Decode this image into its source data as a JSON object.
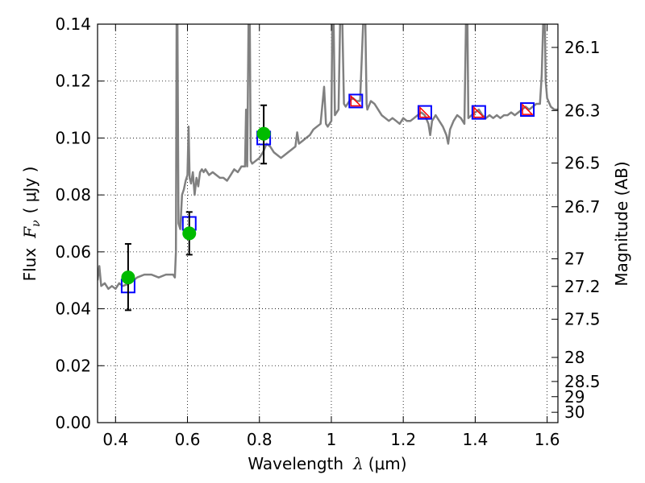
{
  "chart_data": {
    "type": "line",
    "title": "",
    "xlabel_text": "Wavelength",
    "xlabel_symbol": "λ",
    "xlabel_unit": "(μm)",
    "ylabel_text": "Flux",
    "ylabel_symbol": "F",
    "ylabel_subscript": "ν",
    "ylabel_unit": "( μJy )",
    "ylabel_right": "Magnitude (AB)",
    "xlim": [
      0.35,
      1.63
    ],
    "ylim": [
      0.0,
      0.14
    ],
    "grid": true,
    "x_ticks": [
      {
        "value": 0.4,
        "label": "0.4"
      },
      {
        "value": 0.6,
        "label": "0.6"
      },
      {
        "value": 0.8,
        "label": "0.8"
      },
      {
        "value": 1.0,
        "label": "1"
      },
      {
        "value": 1.2,
        "label": "1.2"
      },
      {
        "value": 1.4,
        "label": "1.4"
      },
      {
        "value": 1.6,
        "label": "1.6"
      }
    ],
    "y_ticks": [
      {
        "value": 0.0,
        "label": "0.00"
      },
      {
        "value": 0.02,
        "label": "0.02"
      },
      {
        "value": 0.04,
        "label": "0.04"
      },
      {
        "value": 0.06,
        "label": "0.06"
      },
      {
        "value": 0.08,
        "label": "0.08"
      },
      {
        "value": 0.1,
        "label": "0.10"
      },
      {
        "value": 0.12,
        "label": "0.12"
      },
      {
        "value": 0.14,
        "label": "0.14"
      }
    ],
    "mag_ticks": [
      {
        "value": 26.1,
        "label": "26.1"
      },
      {
        "value": 26.3,
        "label": "26.3"
      },
      {
        "value": 26.5,
        "label": "26.5"
      },
      {
        "value": 26.7,
        "label": "26.7"
      },
      {
        "value": 27.0,
        "label": "27"
      },
      {
        "value": 27.2,
        "label": "27.2"
      },
      {
        "value": 27.5,
        "label": "27.5"
      },
      {
        "value": 28.0,
        "label": "28"
      },
      {
        "value": 28.5,
        "label": "28.5"
      },
      {
        "value": 29.0,
        "label": "29"
      },
      {
        "value": 30.0,
        "label": "30"
      }
    ],
    "spectrum": [
      [
        0.35,
        0.05
      ],
      [
        0.355,
        0.055
      ],
      [
        0.36,
        0.048
      ],
      [
        0.37,
        0.049
      ],
      [
        0.38,
        0.047
      ],
      [
        0.39,
        0.048
      ],
      [
        0.4,
        0.047
      ],
      [
        0.41,
        0.049
      ],
      [
        0.42,
        0.048
      ],
      [
        0.44,
        0.049
      ],
      [
        0.46,
        0.051
      ],
      [
        0.48,
        0.052
      ],
      [
        0.5,
        0.052
      ],
      [
        0.52,
        0.051
      ],
      [
        0.54,
        0.052
      ],
      [
        0.56,
        0.052
      ],
      [
        0.565,
        0.051
      ],
      [
        0.568,
        0.06
      ],
      [
        0.57,
        0.145
      ],
      [
        0.572,
        0.145
      ],
      [
        0.575,
        0.07
      ],
      [
        0.58,
        0.068
      ],
      [
        0.585,
        0.08
      ],
      [
        0.59,
        0.082
      ],
      [
        0.595,
        0.085
      ],
      [
        0.6,
        0.087
      ],
      [
        0.603,
        0.104
      ],
      [
        0.606,
        0.086
      ],
      [
        0.61,
        0.084
      ],
      [
        0.615,
        0.088
      ],
      [
        0.62,
        0.08
      ],
      [
        0.625,
        0.086
      ],
      [
        0.63,
        0.083
      ],
      [
        0.635,
        0.088
      ],
      [
        0.64,
        0.089
      ],
      [
        0.645,
        0.088
      ],
      [
        0.65,
        0.089
      ],
      [
        0.66,
        0.087
      ],
      [
        0.67,
        0.088
      ],
      [
        0.68,
        0.087
      ],
      [
        0.69,
        0.086
      ],
      [
        0.7,
        0.086
      ],
      [
        0.71,
        0.085
      ],
      [
        0.72,
        0.087
      ],
      [
        0.73,
        0.089
      ],
      [
        0.74,
        0.088
      ],
      [
        0.75,
        0.09
      ],
      [
        0.76,
        0.09
      ],
      [
        0.763,
        0.11
      ],
      [
        0.766,
        0.09
      ],
      [
        0.77,
        0.145
      ],
      [
        0.773,
        0.145
      ],
      [
        0.776,
        0.092
      ],
      [
        0.78,
        0.091
      ],
      [
        0.79,
        0.092
      ],
      [
        0.8,
        0.093
      ],
      [
        0.81,
        0.095
      ],
      [
        0.82,
        0.098
      ],
      [
        0.83,
        0.097
      ],
      [
        0.84,
        0.095
      ],
      [
        0.85,
        0.094
      ],
      [
        0.86,
        0.093
      ],
      [
        0.87,
        0.094
      ],
      [
        0.88,
        0.095
      ],
      [
        0.89,
        0.096
      ],
      [
        0.9,
        0.097
      ],
      [
        0.905,
        0.102
      ],
      [
        0.91,
        0.098
      ],
      [
        0.92,
        0.099
      ],
      [
        0.93,
        0.1
      ],
      [
        0.94,
        0.101
      ],
      [
        0.95,
        0.103
      ],
      [
        0.96,
        0.104
      ],
      [
        0.97,
        0.105
      ],
      [
        0.98,
        0.118
      ],
      [
        0.985,
        0.105
      ],
      [
        0.99,
        0.104
      ],
      [
        1.0,
        0.106
      ],
      [
        1.003,
        0.145
      ],
      [
        1.006,
        0.145
      ],
      [
        1.01,
        0.108
      ],
      [
        1.02,
        0.11
      ],
      [
        1.025,
        0.145
      ],
      [
        1.03,
        0.145
      ],
      [
        1.035,
        0.112
      ],
      [
        1.04,
        0.111
      ],
      [
        1.05,
        0.113
      ],
      [
        1.06,
        0.114
      ],
      [
        1.07,
        0.113
      ],
      [
        1.08,
        0.113
      ],
      [
        1.09,
        0.145
      ],
      [
        1.094,
        0.145
      ],
      [
        1.098,
        0.112
      ],
      [
        1.1,
        0.11
      ],
      [
        1.11,
        0.113
      ],
      [
        1.12,
        0.112
      ],
      [
        1.13,
        0.11
      ],
      [
        1.14,
        0.108
      ],
      [
        1.15,
        0.107
      ],
      [
        1.16,
        0.106
      ],
      [
        1.17,
        0.107
      ],
      [
        1.18,
        0.106
      ],
      [
        1.19,
        0.105
      ],
      [
        1.2,
        0.107
      ],
      [
        1.21,
        0.106
      ],
      [
        1.22,
        0.106
      ],
      [
        1.23,
        0.107
      ],
      [
        1.24,
        0.108
      ],
      [
        1.25,
        0.109
      ],
      [
        1.26,
        0.108
      ],
      [
        1.27,
        0.105
      ],
      [
        1.275,
        0.101
      ],
      [
        1.28,
        0.106
      ],
      [
        1.29,
        0.108
      ],
      [
        1.3,
        0.106
      ],
      [
        1.31,
        0.104
      ],
      [
        1.32,
        0.101
      ],
      [
        1.325,
        0.098
      ],
      [
        1.33,
        0.103
      ],
      [
        1.34,
        0.106
      ],
      [
        1.35,
        0.108
      ],
      [
        1.36,
        0.107
      ],
      [
        1.37,
        0.105
      ],
      [
        1.375,
        0.145
      ],
      [
        1.378,
        0.145
      ],
      [
        1.381,
        0.107
      ],
      [
        1.39,
        0.108
      ],
      [
        1.4,
        0.109
      ],
      [
        1.41,
        0.11
      ],
      [
        1.42,
        0.108
      ],
      [
        1.43,
        0.107
      ],
      [
        1.44,
        0.108
      ],
      [
        1.45,
        0.107
      ],
      [
        1.46,
        0.108
      ],
      [
        1.47,
        0.107
      ],
      [
        1.48,
        0.108
      ],
      [
        1.49,
        0.108
      ],
      [
        1.5,
        0.109
      ],
      [
        1.51,
        0.108
      ],
      [
        1.52,
        0.109
      ],
      [
        1.53,
        0.11
      ],
      [
        1.54,
        0.111
      ],
      [
        1.55,
        0.11
      ],
      [
        1.56,
        0.111
      ],
      [
        1.57,
        0.112
      ],
      [
        1.58,
        0.112
      ],
      [
        1.585,
        0.122
      ],
      [
        1.59,
        0.145
      ],
      [
        1.593,
        0.145
      ],
      [
        1.596,
        0.12
      ],
      [
        1.6,
        0.114
      ],
      [
        1.61,
        0.111
      ],
      [
        1.62,
        0.11
      ],
      [
        1.63,
        0.11
      ]
    ],
    "model_points": [
      {
        "x": 0.435,
        "y": 0.048,
        "marker": "square"
      },
      {
        "x": 0.605,
        "y": 0.07,
        "marker": "square"
      },
      {
        "x": 0.812,
        "y": 0.1,
        "marker": "square"
      },
      {
        "x": 1.068,
        "y": 0.113,
        "marker": "square+triangle"
      },
      {
        "x": 1.26,
        "y": 0.109,
        "marker": "square+triangle"
      },
      {
        "x": 1.41,
        "y": 0.109,
        "marker": "square+triangle"
      },
      {
        "x": 1.545,
        "y": 0.11,
        "marker": "square+triangle"
      }
    ],
    "observed_points": [
      {
        "x": 0.435,
        "y": 0.051,
        "err_low": 0.0395,
        "err_high": 0.0628
      },
      {
        "x": 0.605,
        "y": 0.0665,
        "err_low": 0.059,
        "err_high": 0.074
      },
      {
        "x": 0.812,
        "y": 0.1015,
        "err_low": 0.091,
        "err_high": 0.1115
      }
    ],
    "colors": {
      "spectrum": "#808080",
      "model_square": "#0000ff",
      "model_triangle": "#ff0000",
      "observed": "#00bb00",
      "errorbar": "#000000"
    }
  }
}
